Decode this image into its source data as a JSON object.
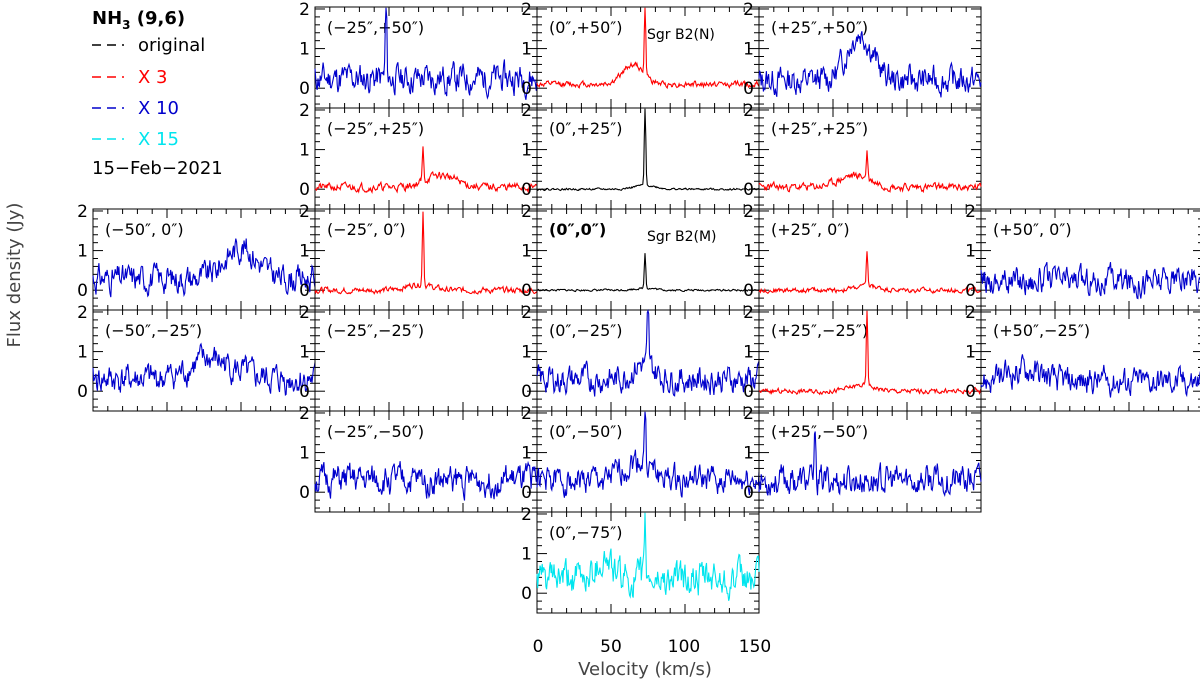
{
  "chart_data": {
    "type": "line",
    "title": "NH3 (9,6)",
    "title_main": "NH",
    "title_sub": "3",
    "title_rest": " (9,6)",
    "date": "15−Feb−2021",
    "xlabel": "Velocity (km/s)",
    "ylabel": "Flux density (Jy)",
    "xlim": [
      0,
      150
    ],
    "ylim": [
      -0.5,
      2.05
    ],
    "xticks": [
      "0",
      "50",
      "100",
      "150"
    ],
    "yticks": [
      "0",
      "1",
      "2"
    ],
    "legend_placement": "top-left",
    "legend": [
      {
        "label": "original",
        "color": "#000000"
      },
      {
        "label": "X 3",
        "color": "#ff0000"
      },
      {
        "label": "X 10",
        "color": "#0000cc"
      },
      {
        "label": "X 15",
        "color": "#00e5ee"
      }
    ],
    "panels": [
      {
        "offset": "(−25″,+50″)",
        "col": -1,
        "row": 2,
        "scale": "X 10",
        "color": "#0000cc",
        "peak": {
          "x": 48,
          "y": 2.0
        },
        "bump": null,
        "noise": 0.3,
        "level": 0.25,
        "seed": 11
      },
      {
        "offset": "(0″,+50″)",
        "col": 0,
        "row": 2,
        "scale": "X 3",
        "color": "#ff0000",
        "peak": {
          "x": 73,
          "y": 1.7
        },
        "bump": {
          "x": 65,
          "y": 0.5,
          "w": 10
        },
        "noise": 0.06,
        "level": 0.1,
        "seed": 12,
        "source": "Sgr B2(N)"
      },
      {
        "offset": "(+25″,+50″)",
        "col": 1,
        "row": 2,
        "scale": "X 10",
        "color": "#0000cc",
        "peak": null,
        "bump": {
          "x": 68,
          "y": 1.2,
          "w": 12
        },
        "noise": 0.28,
        "level": 0.2,
        "seed": 13
      },
      {
        "offset": "(−25″,+25″)",
        "col": -1,
        "row": 1,
        "scale": "X 3",
        "color": "#ff0000",
        "peak": {
          "x": 73,
          "y": 0.8
        },
        "bump": {
          "x": 85,
          "y": 0.3,
          "w": 15
        },
        "noise": 0.08,
        "level": 0.05,
        "seed": 21
      },
      {
        "offset": "(0″,+25″)",
        "col": 0,
        "row": 1,
        "scale": "original",
        "color": "#000000",
        "peak": {
          "x": 73,
          "y": 2.0
        },
        "bump": {
          "x": 73,
          "y": 0.1,
          "w": 10
        },
        "noise": 0.02,
        "level": 0.0,
        "seed": 22
      },
      {
        "offset": "(+25″,+25″)",
        "col": 1,
        "row": 1,
        "scale": "X 3",
        "color": "#ff0000",
        "peak": {
          "x": 73,
          "y": 0.7
        },
        "bump": {
          "x": 65,
          "y": 0.3,
          "w": 15
        },
        "noise": 0.08,
        "level": 0.05,
        "seed": 23
      },
      {
        "offset": "(−50″, 0″)",
        "col": -2,
        "row": 0,
        "scale": "X 10",
        "color": "#0000cc",
        "peak": null,
        "bump": {
          "x": 100,
          "y": 0.8,
          "w": 15
        },
        "noise": 0.28,
        "level": 0.3,
        "seed": 31
      },
      {
        "offset": "(−25″, 0″)",
        "col": -1,
        "row": 0,
        "scale": "X 3",
        "color": "#ff0000",
        "peak": {
          "x": 73,
          "y": 1.9
        },
        "bump": {
          "x": 70,
          "y": 0.15,
          "w": 12
        },
        "noise": 0.06,
        "level": 0.0,
        "seed": 32
      },
      {
        "offset": "(0″,0″)",
        "col": 0,
        "row": 0,
        "scale": "original",
        "color": "#000000",
        "peak": {
          "x": 73,
          "y": 0.9
        },
        "bump": {
          "x": 73,
          "y": 0.05,
          "w": 10
        },
        "noise": 0.02,
        "level": 0.0,
        "seed": 33,
        "source": "Sgr B2(M)",
        "bold": true
      },
      {
        "offset": "(+25″, 0″)",
        "col": 1,
        "row": 0,
        "scale": "X 3",
        "color": "#ff0000",
        "peak": {
          "x": 73,
          "y": 0.9
        },
        "bump": {
          "x": 73,
          "y": 0.1,
          "w": 12
        },
        "noise": 0.05,
        "level": 0.0,
        "seed": 34
      },
      {
        "offset": "(+50″, 0″)",
        "col": 2,
        "row": 0,
        "scale": "X 10",
        "color": "#0000cc",
        "peak": null,
        "bump": null,
        "noise": 0.28,
        "level": 0.25,
        "seed": 35
      },
      {
        "offset": "(−50″,−25″)",
        "col": -2,
        "row": -1,
        "scale": "X 10",
        "color": "#0000cc",
        "peak": null,
        "bump": {
          "x": 80,
          "y": 0.5,
          "w": 20
        },
        "noise": 0.3,
        "level": 0.3,
        "seed": 41
      },
      {
        "offset": "(−25″,−25″)",
        "col": -1,
        "row": -1,
        "scale": null,
        "color": "#0000cc",
        "peak": null,
        "bump": null,
        "noise": 0,
        "level": 0,
        "seed": 42,
        "empty": true
      },
      {
        "offset": "(0″,−25″)",
        "col": 0,
        "row": -1,
        "scale": "X 10",
        "color": "#0000cc",
        "peak": {
          "x": 75,
          "y": 1.6
        },
        "bump": {
          "x": 72,
          "y": 0.4,
          "w": 10
        },
        "noise": 0.28,
        "level": 0.3,
        "seed": 43
      },
      {
        "offset": "(+25″,−25″)",
        "col": 1,
        "row": -1,
        "scale": "X 3",
        "color": "#ff0000",
        "peak": {
          "x": 73,
          "y": 1.9
        },
        "bump": {
          "x": 70,
          "y": 0.15,
          "w": 12
        },
        "noise": 0.05,
        "level": 0.0,
        "seed": 44
      },
      {
        "offset": "(+50″,−25″)",
        "col": 2,
        "row": -1,
        "scale": "X 10",
        "color": "#0000cc",
        "peak": null,
        "bump": {
          "x": 30,
          "y": 0.3,
          "w": 15
        },
        "noise": 0.28,
        "level": 0.25,
        "seed": 45
      },
      {
        "offset": "(−25″,−50″)",
        "col": -1,
        "row": -2,
        "scale": "X 10",
        "color": "#0000cc",
        "peak": null,
        "bump": null,
        "noise": 0.3,
        "level": 0.3,
        "seed": 51
      },
      {
        "offset": "(0″,−50″)",
        "col": 0,
        "row": -2,
        "scale": "X 10",
        "color": "#0000cc",
        "peak": {
          "x": 73,
          "y": 1.5
        },
        "bump": {
          "x": 68,
          "y": 0.5,
          "w": 12
        },
        "noise": 0.28,
        "level": 0.3,
        "seed": 52
      },
      {
        "offset": "(+25″,−50″)",
        "col": 1,
        "row": -2,
        "scale": "X 10",
        "color": "#0000cc",
        "peak": {
          "x": 38,
          "y": 1.3
        },
        "bump": null,
        "noise": 0.3,
        "level": 0.3,
        "seed": 53
      },
      {
        "offset": "(0″,−75″)",
        "col": 0,
        "row": -3,
        "scale": "X 15",
        "color": "#00e5ee",
        "peak": {
          "x": 73,
          "y": 1.5
        },
        "bump": {
          "x": 45,
          "y": 0.5,
          "w": 8
        },
        "noise": 0.35,
        "level": 0.35,
        "seed": 61
      }
    ]
  }
}
